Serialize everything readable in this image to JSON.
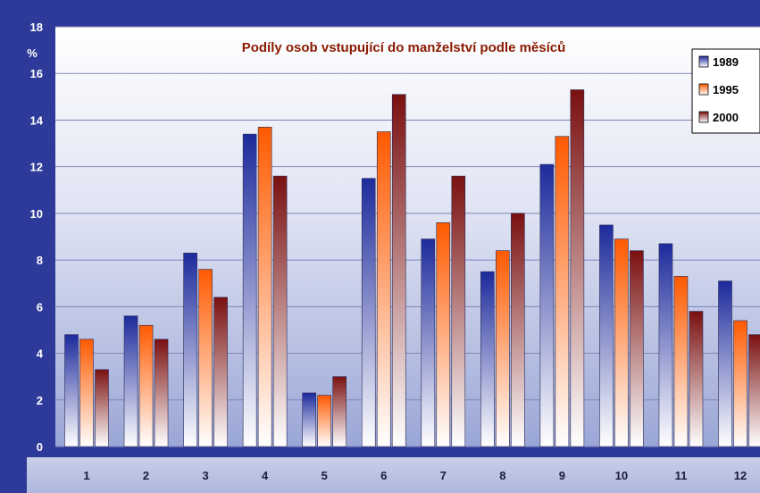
{
  "chart_data": {
    "type": "bar",
    "title": "Podíly osob vstupující do manželství podle měsíců",
    "ylabel": "%",
    "xlabel": "",
    "ylim": [
      0,
      18
    ],
    "yticks": [
      0,
      2,
      4,
      6,
      8,
      10,
      12,
      14,
      16,
      18
    ],
    "grid": true,
    "legend_position": "top-right",
    "categories": [
      "1",
      "2",
      "3",
      "4",
      "5",
      "6",
      "7",
      "8",
      "9",
      "10",
      "11",
      "12"
    ],
    "series": [
      {
        "name": "1989",
        "values": [
          4.8,
          5.6,
          8.3,
          13.4,
          2.3,
          11.5,
          8.9,
          7.5,
          12.1,
          9.5,
          8.7,
          7.1
        ],
        "color_top": "#1d2a9c",
        "color_bottom": "#ffffff"
      },
      {
        "name": "1995",
        "values": [
          4.6,
          5.2,
          7.6,
          13.7,
          2.2,
          13.5,
          9.6,
          8.4,
          13.3,
          8.9,
          7.3,
          5.4
        ],
        "color_top": "#ff5a00",
        "color_bottom": "#ffffff"
      },
      {
        "name": "2000",
        "values": [
          3.3,
          4.6,
          6.4,
          11.6,
          3.0,
          15.1,
          11.6,
          10.0,
          15.3,
          8.4,
          5.8,
          4.8
        ],
        "color_top": "#7a1010",
        "color_bottom": "#ffffff"
      }
    ]
  }
}
